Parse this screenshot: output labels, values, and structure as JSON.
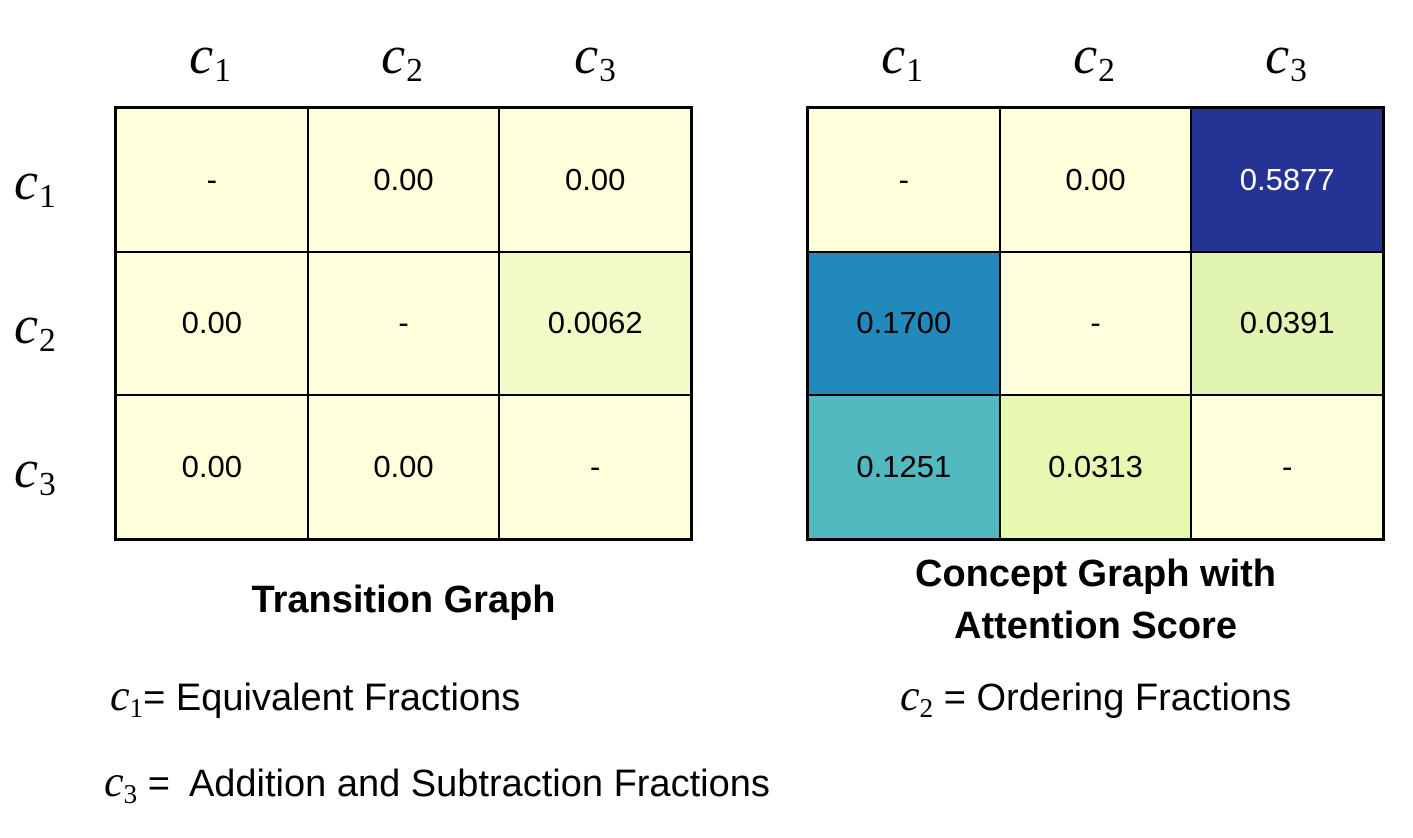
{
  "chart_data": [
    {
      "type": "heatmap",
      "title": "Transition Graph",
      "x_labels": [
        {
          "base": "c",
          "sub": "1"
        },
        {
          "base": "c",
          "sub": "2"
        },
        {
          "base": "c",
          "sub": "3"
        }
      ],
      "y_labels": [
        {
          "base": "c",
          "sub": "1"
        },
        {
          "base": "c",
          "sub": "2"
        },
        {
          "base": "c",
          "sub": "3"
        }
      ],
      "cells": [
        [
          {
            "text": "-",
            "value": null,
            "color": "#ffffdb"
          },
          {
            "text": "0.00",
            "value": 0.0,
            "color": "#ffffdb"
          },
          {
            "text": "0.00",
            "value": 0.0,
            "color": "#ffffdb"
          }
        ],
        [
          {
            "text": "0.00",
            "value": 0.0,
            "color": "#ffffdb"
          },
          {
            "text": "-",
            "value": null,
            "color": "#ffffdb"
          },
          {
            "text": "0.0062",
            "value": 0.0062,
            "color": "#f3fac8"
          }
        ],
        [
          {
            "text": "0.00",
            "value": 0.0,
            "color": "#ffffdb"
          },
          {
            "text": "0.00",
            "value": 0.0,
            "color": "#ffffdb"
          },
          {
            "text": "-",
            "value": null,
            "color": "#ffffdb"
          }
        ]
      ]
    },
    {
      "type": "heatmap",
      "title": "Concept Graph with Attention Score",
      "title_lines": [
        "Concept Graph with",
        "Attention Score"
      ],
      "x_labels": [
        {
          "base": "c",
          "sub": "1"
        },
        {
          "base": "c",
          "sub": "2"
        },
        {
          "base": "c",
          "sub": "3"
        }
      ],
      "y_labels": [
        {
          "base": "c",
          "sub": "1"
        },
        {
          "base": "c",
          "sub": "2"
        },
        {
          "base": "c",
          "sub": "3"
        }
      ],
      "cells": [
        [
          {
            "text": "-",
            "value": null,
            "color": "#ffffdb"
          },
          {
            "text": "0.00",
            "value": 0.0,
            "color": "#ffffdb"
          },
          {
            "text": "0.5877",
            "value": 0.5877,
            "color": "#253494",
            "text_color": "#ffffff"
          }
        ],
        [
          {
            "text": "0.1700",
            "value": 0.17,
            "color": "#2189bb"
          },
          {
            "text": "-",
            "value": null,
            "color": "#ffffdb"
          },
          {
            "text": "0.0391",
            "value": 0.0391,
            "color": "#e2f4b1"
          }
        ],
        [
          {
            "text": "0.1251",
            "value": 0.1251,
            "color": "#52b9c0"
          },
          {
            "text": "0.0313",
            "value": 0.0313,
            "color": "#e9f8b1"
          },
          {
            "text": "-",
            "value": null,
            "color": "#ffffdb"
          }
        ]
      ]
    }
  ],
  "legend": [
    {
      "symbol": {
        "base": "c",
        "sub": "1"
      },
      "text": "= Equivalent Fractions"
    },
    {
      "symbol": {
        "base": "c",
        "sub": "2"
      },
      "text": " = Ordering Fractions"
    },
    {
      "symbol": {
        "base": "c",
        "sub": "3"
      },
      "text": " =  Addition and Subtraction Fractions"
    }
  ]
}
